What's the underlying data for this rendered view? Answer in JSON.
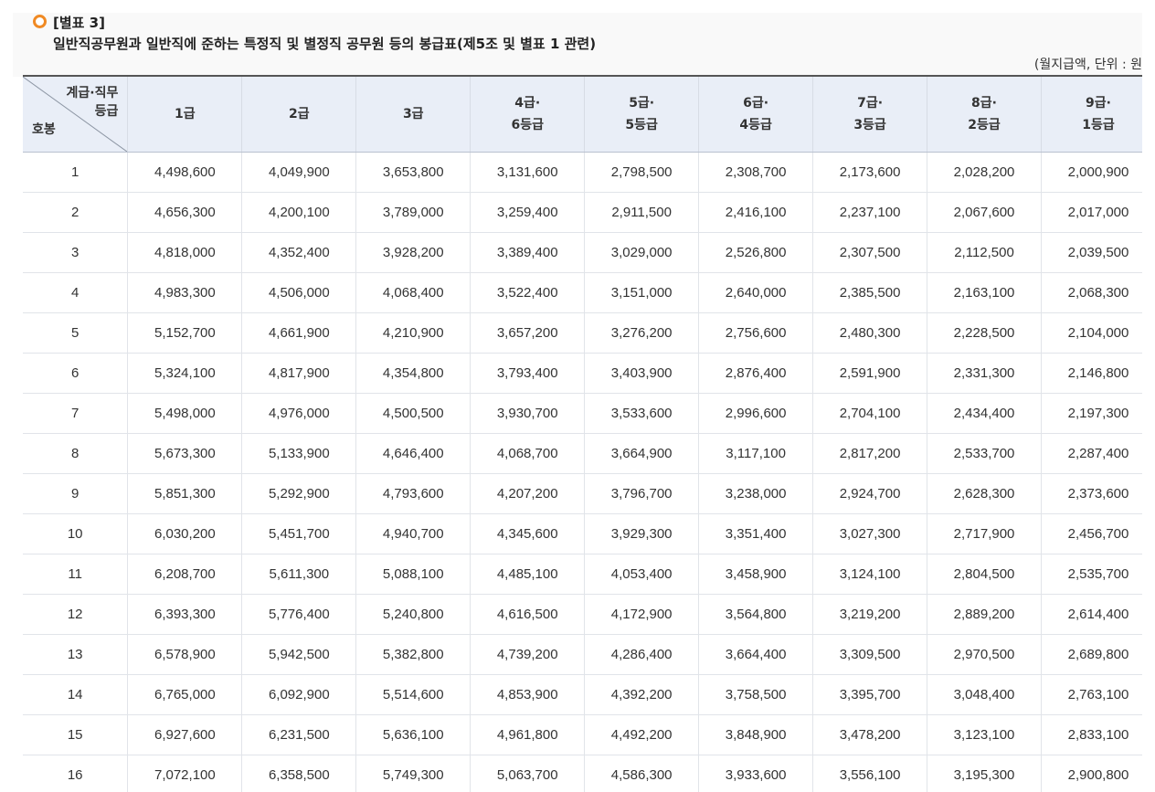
{
  "heading": {
    "label": "[별표 3]",
    "title": "일반직공무원과 일반직에 준하는 특정직 및 별정직 공무원 등의 봉급표(제5조 및 별표 1 관련)",
    "unit_note": "(월지급액, 단위 : 원"
  },
  "table": {
    "corner_top": [
      "계급·직무",
      "등급"
    ],
    "corner_bottom": "호봉",
    "columns": [
      [
        "1급"
      ],
      [
        "2급"
      ],
      [
        "3급"
      ],
      [
        "4급·",
        "6등급"
      ],
      [
        "5급·",
        "5등급"
      ],
      [
        "6급·",
        "4등급"
      ],
      [
        "7급·",
        "3등급"
      ],
      [
        "8급·",
        "2등급"
      ],
      [
        "9급·",
        "1등급"
      ]
    ],
    "rows": [
      {
        "step": "1",
        "values": [
          "4,498,600",
          "4,049,900",
          "3,653,800",
          "3,131,600",
          "2,798,500",
          "2,308,700",
          "2,173,600",
          "2,028,200",
          "2,000,900"
        ]
      },
      {
        "step": "2",
        "values": [
          "4,656,300",
          "4,200,100",
          "3,789,000",
          "3,259,400",
          "2,911,500",
          "2,416,100",
          "2,237,100",
          "2,067,600",
          "2,017,000"
        ]
      },
      {
        "step": "3",
        "values": [
          "4,818,000",
          "4,352,400",
          "3,928,200",
          "3,389,400",
          "3,029,000",
          "2,526,800",
          "2,307,500",
          "2,112,500",
          "2,039,500"
        ]
      },
      {
        "step": "4",
        "values": [
          "4,983,300",
          "4,506,000",
          "4,068,400",
          "3,522,400",
          "3,151,000",
          "2,640,000",
          "2,385,500",
          "2,163,100",
          "2,068,300"
        ]
      },
      {
        "step": "5",
        "values": [
          "5,152,700",
          "4,661,900",
          "4,210,900",
          "3,657,200",
          "3,276,200",
          "2,756,600",
          "2,480,300",
          "2,228,500",
          "2,104,000"
        ]
      },
      {
        "step": "6",
        "values": [
          "5,324,100",
          "4,817,900",
          "4,354,800",
          "3,793,400",
          "3,403,900",
          "2,876,400",
          "2,591,900",
          "2,331,300",
          "2,146,800"
        ]
      },
      {
        "step": "7",
        "values": [
          "5,498,000",
          "4,976,000",
          "4,500,500",
          "3,930,700",
          "3,533,600",
          "2,996,600",
          "2,704,100",
          "2,434,400",
          "2,197,300"
        ]
      },
      {
        "step": "8",
        "values": [
          "5,673,300",
          "5,133,900",
          "4,646,400",
          "4,068,700",
          "3,664,900",
          "3,117,100",
          "2,817,200",
          "2,533,700",
          "2,287,400"
        ]
      },
      {
        "step": "9",
        "values": [
          "5,851,300",
          "5,292,900",
          "4,793,600",
          "4,207,200",
          "3,796,700",
          "3,238,000",
          "2,924,700",
          "2,628,300",
          "2,373,600"
        ]
      },
      {
        "step": "10",
        "values": [
          "6,030,200",
          "5,451,700",
          "4,940,700",
          "4,345,600",
          "3,929,300",
          "3,351,400",
          "3,027,300",
          "2,717,900",
          "2,456,700"
        ]
      },
      {
        "step": "11",
        "values": [
          "6,208,700",
          "5,611,300",
          "5,088,100",
          "4,485,100",
          "4,053,400",
          "3,458,900",
          "3,124,100",
          "2,804,500",
          "2,535,700"
        ]
      },
      {
        "step": "12",
        "values": [
          "6,393,300",
          "5,776,400",
          "5,240,800",
          "4,616,500",
          "4,172,900",
          "3,564,800",
          "3,219,200",
          "2,889,200",
          "2,614,400"
        ]
      },
      {
        "step": "13",
        "values": [
          "6,578,900",
          "5,942,500",
          "5,382,800",
          "4,739,200",
          "4,286,400",
          "3,664,400",
          "3,309,500",
          "2,970,500",
          "2,689,800"
        ]
      },
      {
        "step": "14",
        "values": [
          "6,765,000",
          "6,092,900",
          "5,514,600",
          "4,853,900",
          "4,392,200",
          "3,758,500",
          "3,395,700",
          "3,048,400",
          "2,763,100"
        ]
      },
      {
        "step": "15",
        "values": [
          "6,927,600",
          "6,231,500",
          "5,636,100",
          "4,961,800",
          "4,492,200",
          "3,848,900",
          "3,478,200",
          "3,123,100",
          "2,833,100"
        ]
      },
      {
        "step": "16",
        "values": [
          "7,072,100",
          "6,358,500",
          "5,749,300",
          "5,063,700",
          "4,586,300",
          "3,933,600",
          "3,556,100",
          "3,195,300",
          "2,900,800"
        ]
      }
    ]
  }
}
